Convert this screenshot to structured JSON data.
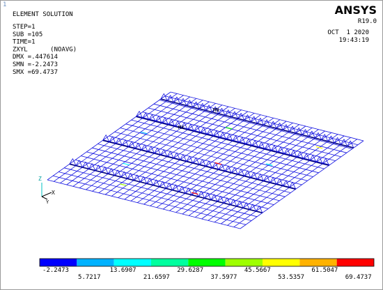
{
  "window_number": "1",
  "info": [
    "ELEMENT SOLUTION",
    "STEP=1",
    "SUB =105",
    "TIME=1",
    "ZXYL      (NOAVG)",
    "DMX =.447614",
    "SMN =-2.2473",
    "SMX =69.4737"
  ],
  "brand": "ANSYS",
  "version": "R19.0",
  "date": "OCT  1 2020",
  "time": "19:43:19",
  "markers": {
    "mn": "MN",
    "mx": "MX"
  },
  "triad": {
    "z": "Z",
    "x": "X",
    "y": "Y"
  },
  "legend": {
    "colors": [
      "#0000ff",
      "#00b2ff",
      "#00ffff",
      "#00ff9e",
      "#00ff00",
      "#9eff00",
      "#ffff00",
      "#ffb200",
      "#ff0000"
    ],
    "labels": [
      "-2.2473",
      "5.7217",
      "13.6907",
      "21.6597",
      "29.6287",
      "37.5977",
      "45.5667",
      "53.5357",
      "61.5047",
      "69.4737"
    ]
  }
}
